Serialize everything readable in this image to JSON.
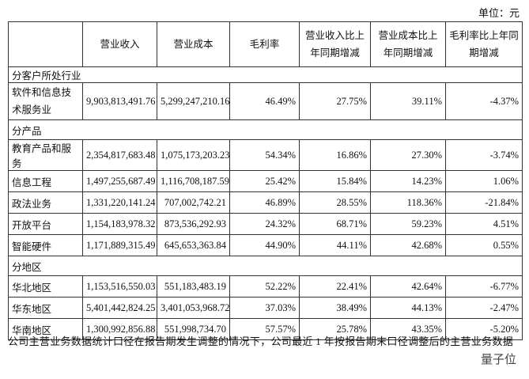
{
  "unit": "单位：元",
  "table": {
    "header": [
      "营业收入",
      "营业成本",
      "毛利率",
      "营业收入比上年同期增减",
      "营业成本比上年同期增减",
      "毛利率比上年同期增减"
    ],
    "rows": [
      {
        "section": "分客户所处行业"
      },
      {
        "cells": [
          "软件和信息技术服务业",
          "9,903,813,491.76",
          "5,299,247,210.16",
          "46.49%",
          "27.75%",
          "39.11%",
          "-4.37%"
        ]
      },
      {
        "section": "分产品"
      },
      {
        "cells": [
          "教育产品和服务",
          "2,354,817,683.48",
          "1,075,173,203.23",
          "54.34%",
          "16.86%",
          "27.30%",
          "-3.74%"
        ]
      },
      {
        "cells": [
          "信息工程",
          "1,497,255,687.49",
          "1,116,708,187.59",
          "25.42%",
          "15.84%",
          "14.23%",
          "1.06%"
        ]
      },
      {
        "cells": [
          "政法业务",
          "1,331,220,141.24",
          "707,002,742.21",
          "46.89%",
          "28.55%",
          "118.36%",
          "-21.84%"
        ]
      },
      {
        "cells": [
          "开放平台",
          "1,154,183,978.32",
          "873,536,292.93",
          "24.32%",
          "68.71%",
          "59.23%",
          "4.51%"
        ]
      },
      {
        "cells": [
          "智能硬件",
          "1,171,889,315.49",
          "645,653,363.84",
          "44.90%",
          "44.11%",
          "42.68%",
          "0.55%"
        ]
      },
      {
        "section": "分地区"
      },
      {
        "cells": [
          "华北地区",
          "1,153,516,550.03",
          "551,183,483.19",
          "52.22%",
          "22.41%",
          "42.64%",
          "-6.77%"
        ]
      },
      {
        "cells": [
          "华东地区",
          "5,401,442,824.25",
          "3,401,053,968.72",
          "37.03%",
          "38.49%",
          "44.13%",
          "-2.47%"
        ]
      },
      {
        "cells": [
          "华南地区",
          "1,300,992,856.88",
          "551,998,734.70",
          "57.57%",
          "25.78%",
          "43.35%",
          "-5.20%"
        ]
      }
    ]
  },
  "footer": "公司主营业务数据统计口径在报告期发生调整的情况下，公司最近 1 年按报告期末口径调整后的主营业务数据",
  "watermark": "量子位"
}
